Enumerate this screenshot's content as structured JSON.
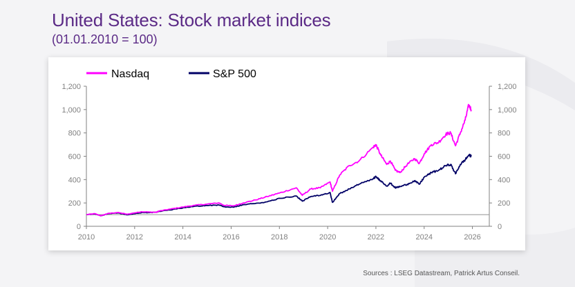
{
  "header": {
    "title": "United States: Stock market indices",
    "subtitle": "(01.01.2010 = 100)"
  },
  "footer": {
    "source": "Sources : LSEG Datastream, Patrick Artus Conseil."
  },
  "colors": {
    "title": "#5b2a86",
    "nasdaq": "#ff00ff",
    "sp500": "#000066",
    "axis": "#808080"
  },
  "chart_data": {
    "type": "line",
    "title": "United States: Stock market indices",
    "subtitle": "(01.01.2010 = 100)",
    "xlabel": "",
    "ylabel": "",
    "xlim": [
      2010,
      2026.7
    ],
    "ylim": [
      0,
      1200
    ],
    "x_ticks": [
      2010,
      2012,
      2014,
      2016,
      2018,
      2020,
      2022,
      2024,
      2026
    ],
    "x_tick_labels": [
      "2010",
      "2012",
      "2014",
      "2016",
      "2018",
      "2020",
      "2022",
      "2024",
      "2026"
    ],
    "y_ticks": [
      0,
      200,
      400,
      600,
      800,
      1000,
      1200
    ],
    "y_tick_labels": [
      "0",
      "200",
      "400",
      "600",
      "800",
      "1,000",
      "1,200"
    ],
    "y_ticks_right": [
      0,
      200,
      400,
      600,
      800,
      1000,
      1200
    ],
    "y_tick_labels_right": [
      "0",
      "200",
      "400",
      "600",
      "800",
      "1,000",
      "1,200"
    ],
    "reference_line": 100,
    "legend_position": "top-left",
    "series": [
      {
        "name": "Nasdaq",
        "color": "#ff00ff",
        "points": [
          [
            2010.0,
            100
          ],
          [
            2010.35,
            108
          ],
          [
            2010.6,
            90
          ],
          [
            2010.9,
            110
          ],
          [
            2011.3,
            118
          ],
          [
            2011.7,
            103
          ],
          [
            2012.0,
            115
          ],
          [
            2012.3,
            125
          ],
          [
            2012.6,
            122
          ],
          [
            2012.9,
            120
          ],
          [
            2013.0,
            130
          ],
          [
            2013.5,
            148
          ],
          [
            2014.0,
            165
          ],
          [
            2014.5,
            180
          ],
          [
            2015.0,
            190
          ],
          [
            2015.5,
            200
          ],
          [
            2015.7,
            180
          ],
          [
            2016.1,
            175
          ],
          [
            2016.5,
            200
          ],
          [
            2017.0,
            225
          ],
          [
            2017.5,
            255
          ],
          [
            2018.0,
            285
          ],
          [
            2018.7,
            330
          ],
          [
            2018.95,
            265
          ],
          [
            2019.3,
            320
          ],
          [
            2019.7,
            330
          ],
          [
            2020.1,
            380
          ],
          [
            2020.2,
            300
          ],
          [
            2020.5,
            440
          ],
          [
            2020.9,
            520
          ],
          [
            2021.3,
            560
          ],
          [
            2021.9,
            680
          ],
          [
            2022.0,
            700
          ],
          [
            2022.2,
            610
          ],
          [
            2022.45,
            530
          ],
          [
            2022.6,
            560
          ],
          [
            2022.8,
            480
          ],
          [
            2023.0,
            460
          ],
          [
            2023.3,
            530
          ],
          [
            2023.6,
            580
          ],
          [
            2023.8,
            540
          ],
          [
            2024.0,
            620
          ],
          [
            2024.3,
            700
          ],
          [
            2024.6,
            720
          ],
          [
            2024.9,
            790
          ],
          [
            2025.1,
            800
          ],
          [
            2025.3,
            690
          ],
          [
            2025.5,
            800
          ],
          [
            2025.7,
            910
          ],
          [
            2025.85,
            1040
          ],
          [
            2025.95,
            1000
          ]
        ]
      },
      {
        "name": "S&P 500",
        "color": "#000066",
        "points": [
          [
            2010.0,
            100
          ],
          [
            2010.35,
            106
          ],
          [
            2010.6,
            90
          ],
          [
            2010.9,
            108
          ],
          [
            2011.3,
            115
          ],
          [
            2011.7,
            98
          ],
          [
            2012.0,
            108
          ],
          [
            2012.3,
            118
          ],
          [
            2012.6,
            117
          ],
          [
            2012.9,
            120
          ],
          [
            2013.0,
            128
          ],
          [
            2013.5,
            140
          ],
          [
            2014.0,
            158
          ],
          [
            2014.5,
            172
          ],
          [
            2015.0,
            178
          ],
          [
            2015.5,
            182
          ],
          [
            2015.7,
            167
          ],
          [
            2016.1,
            163
          ],
          [
            2016.5,
            185
          ],
          [
            2017.0,
            195
          ],
          [
            2017.5,
            210
          ],
          [
            2018.0,
            240
          ],
          [
            2018.7,
            260
          ],
          [
            2018.95,
            215
          ],
          [
            2019.3,
            255
          ],
          [
            2019.7,
            265
          ],
          [
            2020.1,
            290
          ],
          [
            2020.2,
            205
          ],
          [
            2020.5,
            280
          ],
          [
            2020.9,
            320
          ],
          [
            2021.3,
            360
          ],
          [
            2021.9,
            410
          ],
          [
            2022.0,
            425
          ],
          [
            2022.2,
            390
          ],
          [
            2022.45,
            345
          ],
          [
            2022.6,
            370
          ],
          [
            2022.8,
            330
          ],
          [
            2023.0,
            340
          ],
          [
            2023.3,
            360
          ],
          [
            2023.6,
            390
          ],
          [
            2023.8,
            360
          ],
          [
            2024.0,
            420
          ],
          [
            2024.3,
            460
          ],
          [
            2024.6,
            480
          ],
          [
            2024.9,
            520
          ],
          [
            2025.1,
            530
          ],
          [
            2025.3,
            450
          ],
          [
            2025.5,
            530
          ],
          [
            2025.7,
            570
          ],
          [
            2025.85,
            610
          ],
          [
            2025.95,
            600
          ]
        ]
      }
    ]
  }
}
